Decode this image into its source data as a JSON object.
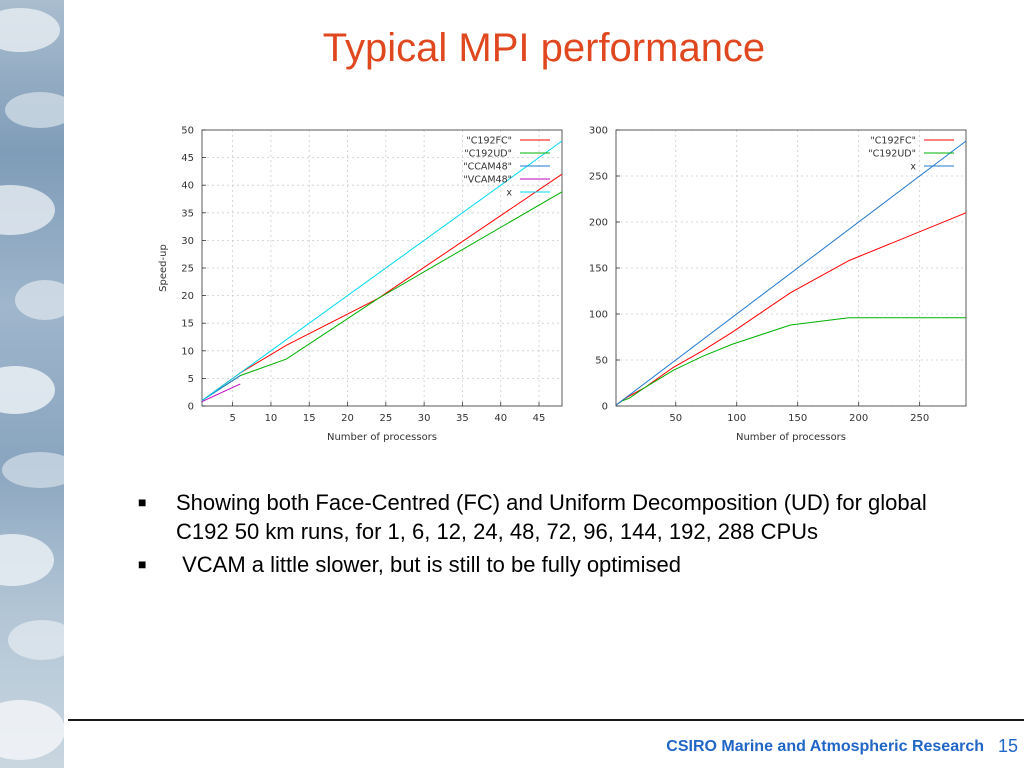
{
  "slide": {
    "title": "Typical MPI performance",
    "bullets": [
      "Showing both Face-Centred (FC) and Uniform Decomposition (UD) for global C192 50 km runs, for 1, 6, 12, 24, 48, 72, 96, 144, 192, 288 CPUs",
      " VCAM a little slower, but is still to be fully optimised"
    ],
    "bullet_marker": "■",
    "footer_org": "CSIRO Marine and Atmospheric Research",
    "page_number": "15"
  },
  "chart_data": [
    {
      "type": "line",
      "xlabel": "Number of processors",
      "ylabel": "Speed-up",
      "xlim": [
        1,
        48
      ],
      "ylim": [
        0,
        50
      ],
      "xticks": [
        5,
        10,
        15,
        20,
        25,
        30,
        35,
        40,
        45
      ],
      "yticks": [
        0,
        5,
        10,
        15,
        20,
        25,
        30,
        35,
        40,
        45,
        50
      ],
      "grid": true,
      "legend": "top-right",
      "series": [
        {
          "name": "\"C192FC\"",
          "color": "#ff0000",
          "x": [
            1,
            6,
            12,
            24,
            48
          ],
          "y": [
            1,
            6,
            11,
            19.5,
            42
          ]
        },
        {
          "name": "\"C192UD\"",
          "color": "#00b000",
          "x": [
            1,
            6,
            12,
            24,
            48
          ],
          "y": [
            1,
            5.5,
            8.5,
            19.5,
            38.8
          ]
        },
        {
          "name": "\"CCAM48\"",
          "color": "#1f78d1",
          "x": [
            1,
            6
          ],
          "y": [
            1,
            5.5
          ]
        },
        {
          "name": "\"VCAM48\"",
          "color": "#c000c0",
          "x": [
            1,
            6
          ],
          "y": [
            0.8,
            4
          ]
        },
        {
          "name": "x",
          "color": "#00d8f0",
          "x": [
            1,
            48
          ],
          "y": [
            1,
            48
          ]
        }
      ]
    },
    {
      "type": "line",
      "xlabel": "Number of processors",
      "ylabel": "",
      "xlim": [
        1,
        288
      ],
      "ylim": [
        0,
        300
      ],
      "xticks": [
        50,
        100,
        150,
        200,
        250
      ],
      "yticks": [
        0,
        50,
        100,
        150,
        200,
        250,
        300
      ],
      "grid": true,
      "legend": "top-right",
      "series": [
        {
          "name": "\"C192FC\"",
          "color": "#ff0000",
          "x": [
            1,
            6,
            12,
            24,
            48,
            72,
            96,
            144,
            192,
            288
          ],
          "y": [
            1,
            6,
            11,
            19.5,
            42,
            60,
            80,
            123,
            158,
            210
          ]
        },
        {
          "name": "\"C192UD\"",
          "color": "#00b000",
          "x": [
            1,
            6,
            12,
            24,
            48,
            72,
            96,
            144,
            192,
            288
          ],
          "y": [
            1,
            5.5,
            8.5,
            19.5,
            38.8,
            54,
            67,
            88,
            96,
            96
          ]
        },
        {
          "name": "x",
          "color": "#1f78d1",
          "x": [
            1,
            288
          ],
          "y": [
            1,
            288
          ]
        }
      ]
    }
  ]
}
